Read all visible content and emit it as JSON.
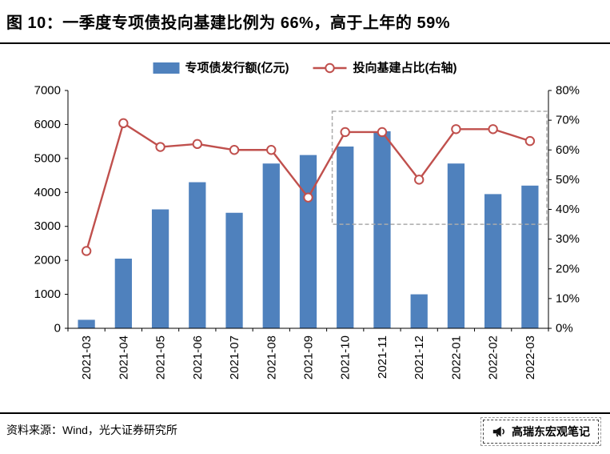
{
  "header": {
    "title": "图 10：一季度专项债投向基建比例为 66%，高于上年的 59%"
  },
  "footer": {
    "source": "资料来源：Wind，光大证券研究所",
    "brand": "高瑞东宏观笔记"
  },
  "colors": {
    "bar": "#4F81BD",
    "line": "#C0504D",
    "axis": "#000000",
    "highlight_border": "#ABABAB"
  },
  "chart_data": {
    "type": "bar",
    "subtype": "bar+line combo",
    "grid": false,
    "legend_position": "top",
    "categories": [
      "2021-03",
      "2021-04",
      "2021-05",
      "2021-06",
      "2021-07",
      "2021-08",
      "2021-09",
      "2021-10",
      "2021-11",
      "2021-12",
      "2022-01",
      "2022-02",
      "2022-03"
    ],
    "series": [
      {
        "name": "专项债发行额(亿元)",
        "type": "bar",
        "axis": "left",
        "color": "#4F81BD",
        "values": [
          250,
          2050,
          3500,
          4300,
          3400,
          4850,
          5100,
          5350,
          5800,
          1000,
          4850,
          3950,
          4200
        ]
      },
      {
        "name": "投向基建占比(右轴)",
        "type": "line",
        "axis": "right",
        "color": "#C0504D",
        "marker": "open-circle",
        "values": [
          26,
          69,
          61,
          62,
          60,
          60,
          44,
          66,
          66,
          50,
          67,
          67,
          63
        ]
      }
    ],
    "left_axis": {
      "min": 0,
      "max": 7000,
      "step": 1000,
      "ticks": [
        "0",
        "1000",
        "2000",
        "3000",
        "4000",
        "5000",
        "6000",
        "7000"
      ]
    },
    "right_axis": {
      "min": 0,
      "max": 80,
      "step": 10,
      "suffix": "%",
      "ticks": [
        "0%",
        "10%",
        "20%",
        "30%",
        "40%",
        "50%",
        "60%",
        "70%",
        "80%"
      ]
    },
    "annotation_box": {
      "style": "gray-dashed-rectangle",
      "from_category": "2021-10",
      "to_category": "2022-03",
      "top_value_right_axis": 73,
      "bottom_value_right_axis": 35
    }
  }
}
